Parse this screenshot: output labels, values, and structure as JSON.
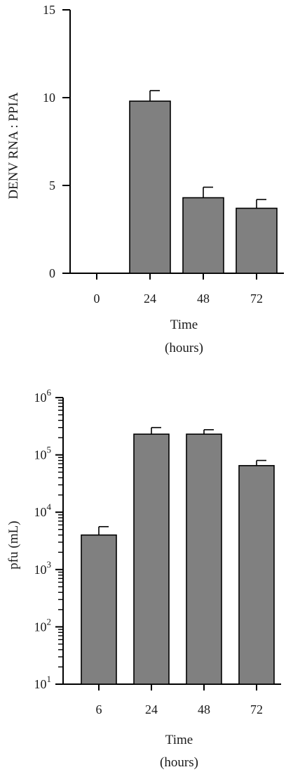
{
  "chart_data": [
    {
      "type": "bar",
      "ylabel": "DENV RNA : PPIA",
      "xlabel": [
        "Time",
        "(hours)"
      ],
      "categories": [
        "0",
        "24",
        "48",
        "72"
      ],
      "values": [
        0,
        9.8,
        4.3,
        3.7
      ],
      "errors": [
        0,
        0.6,
        0.6,
        0.5
      ],
      "yscale": "linear",
      "ylim": [
        0,
        15
      ],
      "yticks": [
        0,
        5,
        10,
        15
      ],
      "ytick_labels": [
        "0",
        "5",
        "10",
        "15"
      ],
      "bar_color": "#808080",
      "grid": false
    },
    {
      "type": "bar",
      "ylabel": "pfu (mL)",
      "xlabel": [
        "Time",
        "(hours)"
      ],
      "categories": [
        "6",
        "24",
        "48",
        "72"
      ],
      "values": [
        4000,
        230000,
        230000,
        65000
      ],
      "errors": [
        1600,
        70000,
        45000,
        15000
      ],
      "yscale": "log",
      "ylim": [
        10,
        1000000
      ],
      "yticks": [
        10,
        100,
        1000,
        10000,
        100000,
        1000000
      ],
      "ytick_labels": [
        {
          "base": "10",
          "exp": "1"
        },
        {
          "base": "10",
          "exp": "2"
        },
        {
          "base": "10",
          "exp": "3"
        },
        {
          "base": "10",
          "exp": "4"
        },
        {
          "base": "10",
          "exp": "5"
        },
        {
          "base": "10",
          "exp": "6"
        }
      ],
      "bar_color": "#808080",
      "grid": false
    }
  ]
}
